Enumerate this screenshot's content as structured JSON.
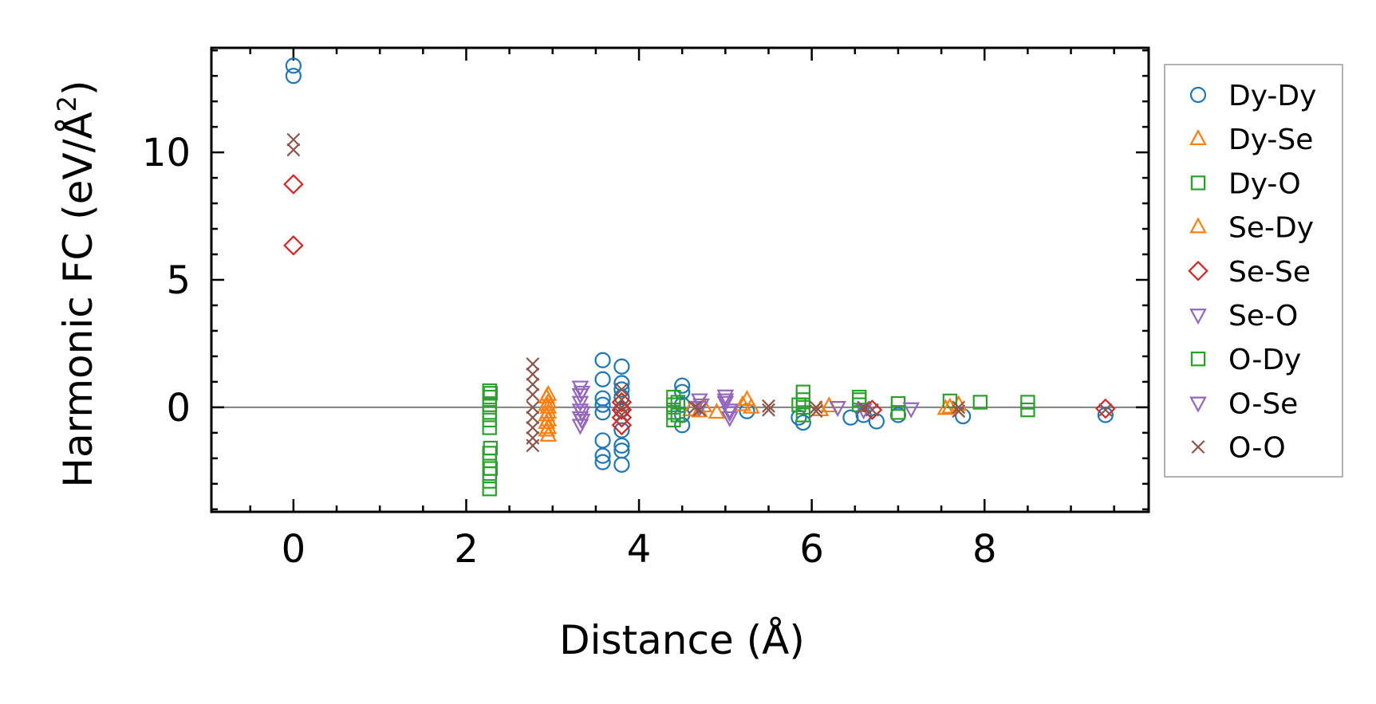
{
  "chart_data": {
    "type": "scatter",
    "title": "",
    "xlabel": "Distance (Å)",
    "ylabel_main": "Harmonic FC (eV/Å",
    "ylabel_sup": "2",
    "ylabel_tail": ")",
    "xlim": [
      -0.95,
      9.9
    ],
    "ylim": [
      -4.1,
      14.1
    ],
    "xticks": [
      0,
      2,
      4,
      6,
      8
    ],
    "xtick_labels": [
      "0",
      "2",
      "4",
      "6",
      "8"
    ],
    "yticks": [
      0,
      5,
      10
    ],
    "ytick_labels": [
      "0",
      "5",
      "10"
    ],
    "xminor_step": 0.5,
    "yminor_step": 1,
    "hline": 0,
    "legend_position": "outside-right",
    "colors": {
      "blue": "#1f77b4",
      "orange": "#ff7f0e",
      "green": "#2ca02c",
      "red": "#d62728",
      "purple": "#9467bd",
      "brown": "#8c564b",
      "zero_line": "#808080"
    },
    "series": [
      {
        "name": "Dy-Dy",
        "marker": "circle",
        "color": "#1f77b4",
        "points": [
          [
            0,
            13.4
          ],
          [
            0,
            13.0
          ],
          [
            3.58,
            1.85
          ],
          [
            3.58,
            1.1
          ],
          [
            3.58,
            0.35
          ],
          [
            3.58,
            0.1
          ],
          [
            3.58,
            -0.2
          ],
          [
            3.58,
            -1.3
          ],
          [
            3.58,
            -1.9
          ],
          [
            3.58,
            -2.15
          ],
          [
            3.8,
            1.6
          ],
          [
            3.8,
            0.95
          ],
          [
            3.8,
            0.7
          ],
          [
            3.8,
            0.4
          ],
          [
            3.8,
            -0.1
          ],
          [
            3.8,
            -0.9
          ],
          [
            3.8,
            -1.5
          ],
          [
            3.8,
            -1.7
          ],
          [
            3.8,
            -2.25
          ],
          [
            4.5,
            0.85
          ],
          [
            4.5,
            0.6
          ],
          [
            4.5,
            0.1
          ],
          [
            4.5,
            -0.3
          ],
          [
            4.5,
            -0.7
          ],
          [
            5.25,
            -0.15
          ],
          [
            5.85,
            -0.4
          ],
          [
            5.9,
            -0.6
          ],
          [
            6.45,
            -0.4
          ],
          [
            6.6,
            -0.3
          ],
          [
            6.75,
            -0.55
          ],
          [
            7.0,
            -0.3
          ],
          [
            7.75,
            -0.35
          ],
          [
            9.4,
            -0.3
          ]
        ]
      },
      {
        "name": "Dy-Se",
        "marker": "triangle-up",
        "color": "#ff7f0e",
        "points": [
          [
            2.95,
            0.5
          ],
          [
            2.95,
            0.2
          ],
          [
            2.95,
            0.0
          ],
          [
            2.95,
            -0.2
          ],
          [
            2.95,
            -0.5
          ],
          [
            2.95,
            -0.8
          ],
          [
            2.95,
            -1.1
          ],
          [
            4.6,
            -0.1
          ],
          [
            4.75,
            0.05
          ],
          [
            4.9,
            -0.2
          ],
          [
            5.25,
            0.3
          ],
          [
            5.3,
            0.0
          ],
          [
            6.2,
            0.05
          ],
          [
            7.55,
            -0.05
          ],
          [
            7.7,
            0.1
          ]
        ]
      },
      {
        "name": "Dy-O",
        "marker": "square",
        "color": "#2ca02c",
        "points": [
          [
            2.27,
            0.65
          ],
          [
            2.27,
            0.4
          ],
          [
            2.27,
            0.1
          ],
          [
            2.27,
            -0.2
          ],
          [
            2.27,
            -0.5
          ],
          [
            2.27,
            -0.8
          ],
          [
            2.27,
            -1.8
          ],
          [
            2.27,
            -2.1
          ],
          [
            2.27,
            -2.6
          ],
          [
            2.27,
            -2.9
          ],
          [
            2.27,
            -3.2
          ],
          [
            4.4,
            0.4
          ],
          [
            4.4,
            0.1
          ],
          [
            4.4,
            -0.2
          ],
          [
            4.4,
            -0.5
          ],
          [
            5.9,
            0.6
          ],
          [
            5.9,
            0.3
          ],
          [
            5.9,
            0.0
          ],
          [
            5.9,
            -0.3
          ],
          [
            6.55,
            0.4
          ],
          [
            6.55,
            0.1
          ],
          [
            7.0,
            0.15
          ],
          [
            7.6,
            0.25
          ],
          [
            7.95,
            0.2
          ],
          [
            8.5,
            0.2
          ],
          [
            8.5,
            -0.1
          ]
        ]
      },
      {
        "name": "Se-Dy",
        "marker": "triangle-up",
        "color": "#ff7f0e",
        "points": [
          [
            2.93,
            0.4
          ],
          [
            2.93,
            0.1
          ],
          [
            2.93,
            -0.3
          ],
          [
            2.93,
            -0.6
          ],
          [
            2.93,
            -0.9
          ],
          [
            4.7,
            -0.15
          ],
          [
            5.2,
            0.1
          ],
          [
            6.1,
            -0.1
          ],
          [
            7.6,
            0.0
          ]
        ]
      },
      {
        "name": "Se-Se",
        "marker": "diamond",
        "color": "#d62728",
        "points": [
          [
            0,
            8.75
          ],
          [
            0,
            6.35
          ],
          [
            3.8,
            0.2
          ],
          [
            3.8,
            -0.1
          ],
          [
            3.8,
            -0.4
          ],
          [
            3.8,
            -0.7
          ],
          [
            6.7,
            -0.1
          ],
          [
            9.4,
            -0.05
          ]
        ]
      },
      {
        "name": "Se-O",
        "marker": "triangle-down",
        "color": "#9467bd",
        "points": [
          [
            3.32,
            0.8
          ],
          [
            3.32,
            0.5
          ],
          [
            3.32,
            0.2
          ],
          [
            3.32,
            -0.1
          ],
          [
            3.32,
            -0.4
          ],
          [
            3.32,
            -0.7
          ],
          [
            4.7,
            0.3
          ],
          [
            4.7,
            0.0
          ],
          [
            5.0,
            0.45
          ],
          [
            5.0,
            0.2
          ],
          [
            5.05,
            -0.1
          ],
          [
            5.05,
            -0.4
          ],
          [
            6.3,
            0.0
          ],
          [
            6.6,
            -0.1
          ],
          [
            7.15,
            -0.05
          ]
        ]
      },
      {
        "name": "O-Dy",
        "marker": "square",
        "color": "#2ca02c",
        "points": [
          [
            2.28,
            0.55
          ],
          [
            2.28,
            -1.6
          ],
          [
            2.28,
            -2.4
          ],
          [
            4.45,
            0.2
          ],
          [
            4.45,
            -0.3
          ],
          [
            5.85,
            0.1
          ],
          [
            6.55,
            0.3
          ],
          [
            7.0,
            -0.2
          ]
        ]
      },
      {
        "name": "O-Se",
        "marker": "triangle-down",
        "color": "#9467bd",
        "points": [
          [
            3.34,
            0.6
          ],
          [
            3.34,
            -0.2
          ],
          [
            3.34,
            -0.5
          ],
          [
            4.72,
            0.1
          ],
          [
            5.0,
            0.3
          ],
          [
            5.05,
            -0.2
          ]
        ]
      },
      {
        "name": "O-O",
        "marker": "x",
        "color": "#8c564b",
        "points": [
          [
            0,
            10.5
          ],
          [
            0,
            10.1
          ],
          [
            2.77,
            1.7
          ],
          [
            2.77,
            1.3
          ],
          [
            2.77,
            0.9
          ],
          [
            2.77,
            0.5
          ],
          [
            2.77,
            0.0
          ],
          [
            2.77,
            -0.4
          ],
          [
            2.77,
            -0.8
          ],
          [
            2.77,
            -1.2
          ],
          [
            2.77,
            -1.5
          ],
          [
            3.8,
            0.7
          ],
          [
            3.8,
            0.3
          ],
          [
            3.8,
            0.0
          ],
          [
            3.8,
            -0.3
          ],
          [
            4.65,
            0.0
          ],
          [
            4.7,
            -0.1
          ],
          [
            5.5,
            0.05
          ],
          [
            5.5,
            -0.1
          ],
          [
            6.05,
            0.0
          ],
          [
            6.05,
            -0.15
          ],
          [
            6.6,
            0.0
          ],
          [
            6.7,
            -0.1
          ],
          [
            7.7,
            0.0
          ],
          [
            7.7,
            -0.15
          ],
          [
            9.4,
            -0.1
          ]
        ]
      }
    ]
  }
}
